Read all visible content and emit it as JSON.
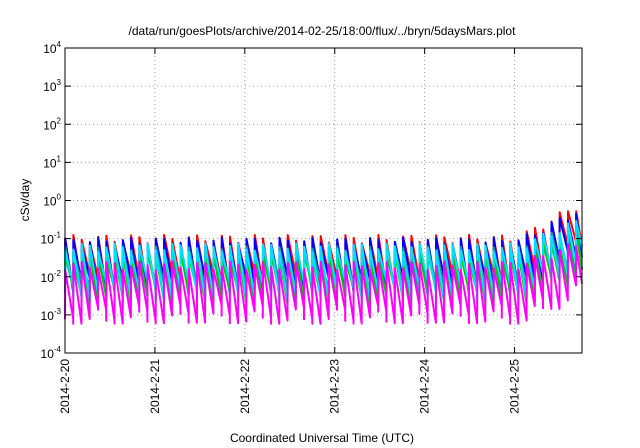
{
  "chart_data": {
    "type": "line",
    "title": "/data/run/goesPlots/archive/2014-02-25/18:00/flux/../bryn/5daysMars.plot",
    "xlabel": "Coordinated Universal Time (UTC)",
    "ylabel": "cSv/day",
    "yscale": "log",
    "ylim": [
      0.0001,
      10000
    ],
    "yticks": [
      {
        "base": "10",
        "exp": "-4"
      },
      {
        "base": "10",
        "exp": "-3"
      },
      {
        "base": "10",
        "exp": "-2"
      },
      {
        "base": "10",
        "exp": "-1"
      },
      {
        "base": "10",
        "exp": "0"
      },
      {
        "base": "10",
        "exp": "1"
      },
      {
        "base": "10",
        "exp": "2"
      },
      {
        "base": "10",
        "exp": "3"
      },
      {
        "base": "10",
        "exp": "4"
      }
    ],
    "xlim": [
      "2014-02-20T00:00",
      "2014-02-25T18:00"
    ],
    "xticks": [
      "2014-2-20",
      "2014-2-21",
      "2014-2-22",
      "2014-2-23",
      "2014-2-24",
      "2014-2-25"
    ],
    "grid": true,
    "legend": "none",
    "series": [
      {
        "color": "#ff0000",
        "peak": 0.1,
        "trough": 0.005,
        "late_peak": 0.85,
        "late_trough": 0.08
      },
      {
        "color": "#0000ff",
        "peak": 0.085,
        "trough": 0.004,
        "late_peak": 0.6,
        "late_trough": 0.05
      },
      {
        "color": "#00a0a0",
        "peak": 0.05,
        "trough": 0.003,
        "late_peak": 0.25,
        "late_trough": 0.02
      },
      {
        "color": "#00c800",
        "peak": 0.035,
        "trough": 0.002,
        "late_peak": 0.15,
        "late_trough": 0.012
      },
      {
        "color": "#00e0ff",
        "peak": 0.06,
        "trough": 0.003,
        "late_peak": 0.3,
        "late_trough": 0.03
      },
      {
        "color": "#ff00ff",
        "peak": 0.02,
        "trough": 0.0007,
        "late_peak": 0.08,
        "late_trough": 0.004
      }
    ]
  }
}
